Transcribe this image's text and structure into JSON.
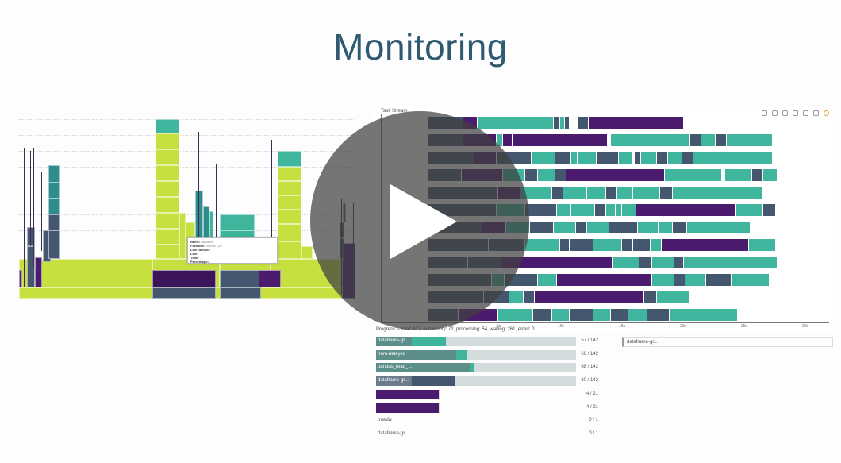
{
  "slide": {
    "title": "Monitoring"
  },
  "colors": {
    "lime": "#c6e040",
    "green": "#5ec661",
    "teal": "#3eb59c",
    "teal_dark": "#2e8e8c",
    "slate": "#45576f",
    "purple": "#4b1c6e",
    "purple_dark": "#3b145a",
    "grey": "#d4dbdd"
  },
  "flame_tooltip": {
    "rows": [
      {
        "key": "Name:",
        "value": "fapoaom"
      },
      {
        "key": "Filename:",
        "value": "/home/...py"
      },
      {
        "key": "Line number:",
        "value": "..."
      },
      {
        "key": "Line:",
        "value": "..."
      },
      {
        "key": "Time:",
        "value": "..."
      },
      {
        "key": "Percentage:",
        "value": "..."
      }
    ]
  },
  "task_stream": {
    "title": "Task Stream",
    "x_ticks": [
      "5s",
      "10s",
      "15s",
      "20s",
      "25s",
      "30s"
    ]
  },
  "progress": {
    "summary": "Progress -- total: 413, in-memory: 72, processing: 54, waiting: 261, erred: 0",
    "rows": [
      {
        "name": "dataframe-gr...",
        "count": "57 / 142",
        "done": 0.18,
        "processing": 0.17,
        "memory": 0.0,
        "color": "#3eb59c"
      },
      {
        "name": "from-delayed",
        "count": "66 / 142",
        "done": 0.4,
        "processing": 0.05,
        "memory": 0.0,
        "color": "#3eb59c"
      },
      {
        "name": "pandas_read_...",
        "count": "68 / 142",
        "done": 0.47,
        "processing": 0.02,
        "memory": 0.0,
        "color": "#3eb59c"
      },
      {
        "name": "dataframe-gr...",
        "count": "60 / 142",
        "done": 0.18,
        "processing": 0.22,
        "memory": 0.0,
        "color": "#45576f"
      },
      {
        "name": "",
        "count": "4 / 21",
        "done": 0.19,
        "processing": 0.1,
        "memory": 0.0,
        "color": "#4b1c6e"
      },
      {
        "name": "",
        "count": "4 / 21",
        "done": 0.19,
        "processing": 0.1,
        "memory": 0.0,
        "color": "#4b1c6e"
      },
      {
        "name": "truediv",
        "count": "0 / 1",
        "done": 0.0,
        "processing": 0.0,
        "memory": 0.0,
        "color": "#4b1c6e"
      },
      {
        "name": "dataframe-gr...",
        "count": "0 / 1",
        "done": 0.0,
        "processing": 0.0,
        "memory": 0.0,
        "color": "#4b1c6e"
      }
    ],
    "right_panel_label": "dataframe-gr..."
  },
  "video": {
    "play_button": "play-icon"
  }
}
